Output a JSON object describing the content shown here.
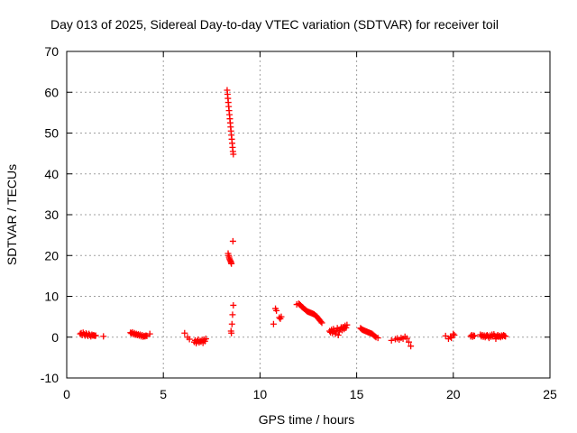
{
  "chart_data": {
    "type": "scatter",
    "title": "Day 013 of 2025, Sidereal Day-to-day VTEC variation (SDTVAR) for receiver toil",
    "xlabel": "GPS time / hours",
    "ylabel": "SDTVAR / TECUs",
    "xlim": [
      0,
      25
    ],
    "ylim": [
      -10,
      70
    ],
    "xticks": [
      0,
      5,
      10,
      15,
      20,
      25
    ],
    "yticks": [
      -10,
      0,
      10,
      20,
      30,
      40,
      50,
      60,
      70
    ],
    "grid": true,
    "marker": "+",
    "color": "#ff0000",
    "series": [
      {
        "name": "SDTVAR",
        "points": [
          [
            0.7,
            0.8
          ],
          [
            0.75,
            1.0
          ],
          [
            0.8,
            0.5
          ],
          [
            0.85,
            1.1
          ],
          [
            0.9,
            0.7
          ],
          [
            0.95,
            0.4
          ],
          [
            1.0,
            0.9
          ],
          [
            1.05,
            0.6
          ],
          [
            1.1,
            0.3
          ],
          [
            1.15,
            0.8
          ],
          [
            1.2,
            0.5
          ],
          [
            1.25,
            0.2
          ],
          [
            1.3,
            0.6
          ],
          [
            1.35,
            0.4
          ],
          [
            1.4,
            0.5
          ],
          [
            1.45,
            0.3
          ],
          [
            1.5,
            0.4
          ],
          [
            1.9,
            0.2
          ],
          [
            3.3,
            1.1
          ],
          [
            3.35,
            0.9
          ],
          [
            3.4,
            1.2
          ],
          [
            3.45,
            0.7
          ],
          [
            3.5,
            1.0
          ],
          [
            3.55,
            0.6
          ],
          [
            3.6,
            0.8
          ],
          [
            3.65,
            0.5
          ],
          [
            3.7,
            0.7
          ],
          [
            3.75,
            0.4
          ],
          [
            3.8,
            0.6
          ],
          [
            3.85,
            0.2
          ],
          [
            3.9,
            0.5
          ],
          [
            3.95,
            0.1
          ],
          [
            4.0,
            0.3
          ],
          [
            4.05,
            0.2
          ],
          [
            4.1,
            0.4
          ],
          [
            4.15,
            0.3
          ],
          [
            4.3,
            0.8
          ],
          [
            6.1,
            1.0
          ],
          [
            6.25,
            0.0
          ],
          [
            6.35,
            -0.5
          ],
          [
            6.6,
            -1.2
          ],
          [
            6.65,
            -0.8
          ],
          [
            6.7,
            -1.5
          ],
          [
            6.75,
            -1.0
          ],
          [
            6.8,
            -0.6
          ],
          [
            6.85,
            -1.3
          ],
          [
            6.9,
            -0.9
          ],
          [
            6.95,
            -1.1
          ],
          [
            7.0,
            -0.7
          ],
          [
            7.05,
            -1.4
          ],
          [
            7.1,
            -0.6
          ],
          [
            7.15,
            -1.0
          ],
          [
            7.2,
            -0.4
          ],
          [
            8.3,
            60.5
          ],
          [
            8.32,
            59.5
          ],
          [
            8.34,
            58.5
          ],
          [
            8.36,
            57.5
          ],
          [
            8.38,
            56.5
          ],
          [
            8.4,
            55.5
          ],
          [
            8.42,
            54.5
          ],
          [
            8.44,
            53.5
          ],
          [
            8.46,
            52.5
          ],
          [
            8.48,
            51.5
          ],
          [
            8.5,
            50.5
          ],
          [
            8.52,
            49.5
          ],
          [
            8.54,
            48.5
          ],
          [
            8.56,
            47.5
          ],
          [
            8.58,
            46.5
          ],
          [
            8.6,
            45.5
          ],
          [
            8.62,
            44.8
          ],
          [
            8.35,
            20.5
          ],
          [
            8.38,
            20.0
          ],
          [
            8.4,
            19.6
          ],
          [
            8.42,
            19.2
          ],
          [
            8.45,
            18.9
          ],
          [
            8.48,
            18.6
          ],
          [
            8.5,
            18.3
          ],
          [
            8.52,
            18.0
          ],
          [
            8.6,
            23.5
          ],
          [
            8.5,
            1.5
          ],
          [
            8.52,
            1.0
          ],
          [
            8.55,
            3.2
          ],
          [
            8.58,
            5.5
          ],
          [
            8.62,
            7.8
          ],
          [
            10.7,
            3.2
          ],
          [
            10.8,
            7.0
          ],
          [
            10.85,
            6.5
          ],
          [
            11.0,
            4.8
          ],
          [
            11.05,
            4.5
          ],
          [
            11.1,
            5.0
          ],
          [
            11.9,
            8.0
          ],
          [
            12.0,
            8.2
          ],
          [
            12.05,
            8.0
          ],
          [
            12.1,
            7.8
          ],
          [
            12.15,
            7.5
          ],
          [
            12.2,
            7.3
          ],
          [
            12.25,
            7.1
          ],
          [
            12.3,
            6.9
          ],
          [
            12.35,
            6.7
          ],
          [
            12.4,
            6.5
          ],
          [
            12.45,
            6.3
          ],
          [
            12.5,
            6.2
          ],
          [
            12.55,
            6.1
          ],
          [
            12.6,
            6.0
          ],
          [
            12.65,
            5.9
          ],
          [
            12.7,
            5.8
          ],
          [
            12.75,
            5.7
          ],
          [
            12.8,
            5.6
          ],
          [
            12.85,
            5.4
          ],
          [
            12.9,
            5.2
          ],
          [
            12.95,
            5.0
          ],
          [
            13.0,
            4.7
          ],
          [
            13.05,
            4.4
          ],
          [
            13.1,
            4.1
          ],
          [
            13.15,
            3.8
          ],
          [
            13.2,
            3.5
          ],
          [
            13.6,
            1.5
          ],
          [
            13.65,
            1.2
          ],
          [
            13.7,
            1.8
          ],
          [
            13.75,
            1.0
          ],
          [
            13.8,
            2.0
          ],
          [
            13.85,
            1.4
          ],
          [
            13.9,
            0.8
          ],
          [
            13.95,
            1.6
          ],
          [
            14.0,
            2.2
          ],
          [
            14.05,
            0.5
          ],
          [
            14.1,
            1.3
          ],
          [
            14.15,
            1.9
          ],
          [
            14.2,
            2.4
          ],
          [
            14.25,
            1.7
          ],
          [
            14.3,
            2.5
          ],
          [
            14.35,
            2.0
          ],
          [
            14.4,
            2.8
          ],
          [
            14.45,
            2.3
          ],
          [
            14.5,
            3.0
          ],
          [
            15.2,
            2.2
          ],
          [
            15.25,
            2.0
          ],
          [
            15.3,
            1.8
          ],
          [
            15.35,
            1.7
          ],
          [
            15.4,
            1.6
          ],
          [
            15.45,
            1.5
          ],
          [
            15.5,
            1.4
          ],
          [
            15.55,
            1.3
          ],
          [
            15.6,
            1.2
          ],
          [
            15.65,
            1.1
          ],
          [
            15.7,
            1.0
          ],
          [
            15.75,
            0.9
          ],
          [
            15.8,
            0.8
          ],
          [
            15.85,
            0.6
          ],
          [
            15.9,
            0.4
          ],
          [
            15.95,
            0.2
          ],
          [
            16.0,
            0.0
          ],
          [
            16.1,
            -0.2
          ],
          [
            16.8,
            -0.8
          ],
          [
            17.0,
            -0.5
          ],
          [
            17.1,
            -0.3
          ],
          [
            17.2,
            -0.6
          ],
          [
            17.3,
            -0.2
          ],
          [
            17.4,
            -0.4
          ],
          [
            17.5,
            0.1
          ],
          [
            17.6,
            -0.3
          ],
          [
            17.7,
            -1.2
          ],
          [
            17.8,
            -2.2
          ],
          [
            19.6,
            0.3
          ],
          [
            19.75,
            -0.4
          ],
          [
            19.85,
            0.1
          ],
          [
            19.9,
            -0.2
          ],
          [
            20.0,
            0.8
          ],
          [
            20.05,
            0.5
          ],
          [
            20.9,
            0.2
          ],
          [
            20.95,
            0.5
          ],
          [
            21.0,
            0.1
          ],
          [
            21.05,
            0.4
          ],
          [
            21.1,
            0.3
          ],
          [
            21.4,
            0.6
          ],
          [
            21.45,
            0.2
          ],
          [
            21.5,
            0.5
          ],
          [
            21.55,
            0.1
          ],
          [
            21.6,
            0.4
          ],
          [
            21.65,
            0.0
          ],
          [
            21.7,
            0.3
          ],
          [
            21.75,
            0.5
          ],
          [
            21.8,
            0.2
          ],
          [
            21.85,
            -0.2
          ],
          [
            21.9,
            0.4
          ],
          [
            21.95,
            0.1
          ],
          [
            22.0,
            0.6
          ],
          [
            22.05,
            0.2
          ],
          [
            22.1,
            0.7
          ],
          [
            22.15,
            0.3
          ],
          [
            22.2,
            -0.4
          ],
          [
            22.25,
            0.2
          ],
          [
            22.3,
            0.5
          ],
          [
            22.35,
            0.1
          ],
          [
            22.4,
            0.3
          ],
          [
            22.45,
            0.0
          ],
          [
            22.5,
            0.4
          ],
          [
            22.55,
            0.2
          ],
          [
            22.6,
            0.5
          ],
          [
            22.65,
            0.3
          ],
          [
            22.7,
            0.2
          ]
        ]
      }
    ]
  }
}
